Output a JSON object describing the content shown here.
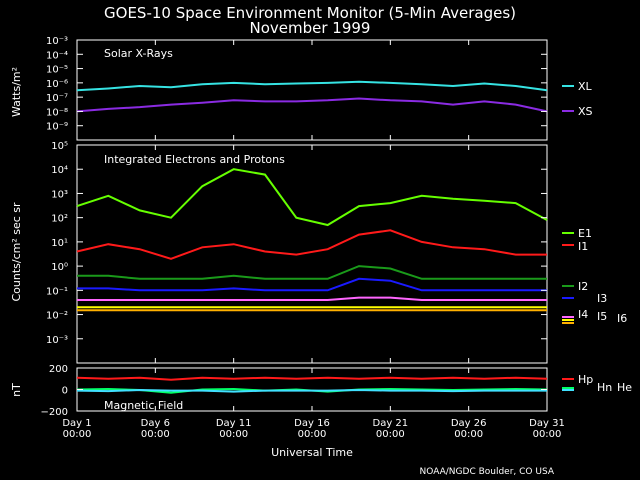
{
  "title": "GOES-10 Space Environment Monitor (5-Min Averages)",
  "subtitle": "November 1999",
  "xlabel": "Universal Time",
  "credit": "NOAA/NGDC Boulder, CO USA",
  "colors": {
    "XL": "#36e3e3",
    "XS": "#8a2be2",
    "E1": "#66ff00",
    "I1": "#ff1a1a",
    "I2": "#1a9a1a",
    "I3": "#1a1aff",
    "I4": "#ff66ff",
    "I5": "#ffff00",
    "I6": "#ffb000",
    "Hp": "#ff1a1a",
    "Hn": "#00ff66",
    "He": "#40e0ff"
  },
  "chart_data": [
    {
      "type": "line",
      "panel": "xray",
      "title": "Solar X-Rays",
      "ylabel": "Watts/m²",
      "yscale": "log",
      "ylim": [
        1e-10,
        0.001
      ],
      "yticks": [
        "10⁻³",
        "10⁻⁴",
        "10⁻⁵",
        "10⁻⁶",
        "10⁻⁷",
        "10⁻⁸",
        "10⁻⁹"
      ],
      "x": [
        1,
        3,
        5,
        7,
        9,
        11,
        13,
        15,
        17,
        19,
        21,
        23,
        25,
        27,
        29,
        31
      ],
      "series": [
        {
          "name": "XL",
          "values": [
            3e-07,
            4e-07,
            6e-07,
            5e-07,
            8e-07,
            1e-06,
            8e-07,
            9e-07,
            1e-06,
            1.2e-06,
            1e-06,
            8e-07,
            6e-07,
            9e-07,
            6e-07,
            3e-07
          ]
        },
        {
          "name": "XS",
          "values": [
            1e-08,
            1.5e-08,
            2e-08,
            3e-08,
            4e-08,
            6e-08,
            5e-08,
            5e-08,
            6e-08,
            8e-08,
            6e-08,
            5e-08,
            3e-08,
            5e-08,
            3e-08,
            1e-08
          ]
        }
      ]
    },
    {
      "type": "line",
      "panel": "particles",
      "title": "Integrated Electrons and Protons",
      "ylabel": "Counts/cm² sec sr",
      "yscale": "log",
      "ylim": [
        0.0001,
        100000.0
      ],
      "yticks": [
        "10⁵",
        "10⁴",
        "10³",
        "10²",
        "10¹",
        "10⁰",
        "10⁻¹",
        "10⁻²",
        "10⁻³"
      ],
      "x": [
        1,
        3,
        5,
        7,
        9,
        11,
        13,
        15,
        17,
        19,
        21,
        23,
        25,
        27,
        29,
        31
      ],
      "series": [
        {
          "name": "E1",
          "values": [
            300,
            800,
            200,
            100,
            2000,
            10000,
            6000,
            100,
            50,
            300,
            400,
            800,
            600,
            500,
            400,
            80
          ]
        },
        {
          "name": "I1",
          "values": [
            4,
            8,
            5,
            2,
            6,
            8,
            4,
            3,
            5,
            20,
            30,
            10,
            6,
            5,
            3,
            3
          ]
        },
        {
          "name": "I2",
          "values": [
            0.4,
            0.4,
            0.3,
            0.3,
            0.3,
            0.4,
            0.3,
            0.3,
            0.3,
            1,
            0.8,
            0.3,
            0.3,
            0.3,
            0.3,
            0.3
          ]
        },
        {
          "name": "I3",
          "values": [
            0.12,
            0.12,
            0.1,
            0.1,
            0.1,
            0.12,
            0.1,
            0.1,
            0.1,
            0.3,
            0.25,
            0.1,
            0.1,
            0.1,
            0.1,
            0.1
          ]
        },
        {
          "name": "I4",
          "values": [
            0.04,
            0.04,
            0.04,
            0.04,
            0.04,
            0.04,
            0.04,
            0.04,
            0.04,
            0.05,
            0.05,
            0.04,
            0.04,
            0.04,
            0.04,
            0.04
          ]
        },
        {
          "name": "I5",
          "values": [
            0.02,
            0.02,
            0.02,
            0.02,
            0.02,
            0.02,
            0.02,
            0.02,
            0.02,
            0.02,
            0.02,
            0.02,
            0.02,
            0.02,
            0.02,
            0.02
          ]
        },
        {
          "name": "I6",
          "values": [
            0.015,
            0.015,
            0.015,
            0.015,
            0.015,
            0.015,
            0.015,
            0.015,
            0.015,
            0.015,
            0.015,
            0.015,
            0.015,
            0.015,
            0.015,
            0.015
          ]
        }
      ]
    },
    {
      "type": "line",
      "panel": "magnetic",
      "title": "Magnetic Field",
      "ylabel": "nT",
      "ylim": [
        -200,
        200
      ],
      "yticks": [
        "200",
        "0",
        "−200"
      ],
      "x": [
        1,
        3,
        5,
        7,
        9,
        11,
        13,
        15,
        17,
        19,
        21,
        23,
        25,
        27,
        29,
        31
      ],
      "series": [
        {
          "name": "Hp",
          "values": [
            110,
            100,
            110,
            90,
            110,
            100,
            110,
            100,
            110,
            100,
            110,
            100,
            110,
            100,
            110,
            100
          ]
        },
        {
          "name": "Hn",
          "values": [
            0,
            5,
            -5,
            -30,
            0,
            5,
            -10,
            0,
            -20,
            0,
            5,
            0,
            -5,
            0,
            5,
            0
          ]
        },
        {
          "name": "He",
          "values": [
            -10,
            -15,
            -5,
            -10,
            -10,
            -20,
            -10,
            -10,
            -10,
            -5,
            -10,
            -10,
            -15,
            -10,
            -10,
            -10
          ]
        }
      ]
    }
  ],
  "x_ticks": {
    "days": [
      "Day 1",
      "Day 6",
      "Day 11",
      "Day 16",
      "Day 21",
      "Day 26",
      "Day 31"
    ],
    "times": [
      "00:00",
      "00:00",
      "00:00",
      "00:00",
      "00:00",
      "00:00",
      "00:00"
    ],
    "day_values": [
      1,
      6,
      11,
      16,
      21,
      26,
      31
    ],
    "xlim": [
      1,
      31
    ]
  }
}
